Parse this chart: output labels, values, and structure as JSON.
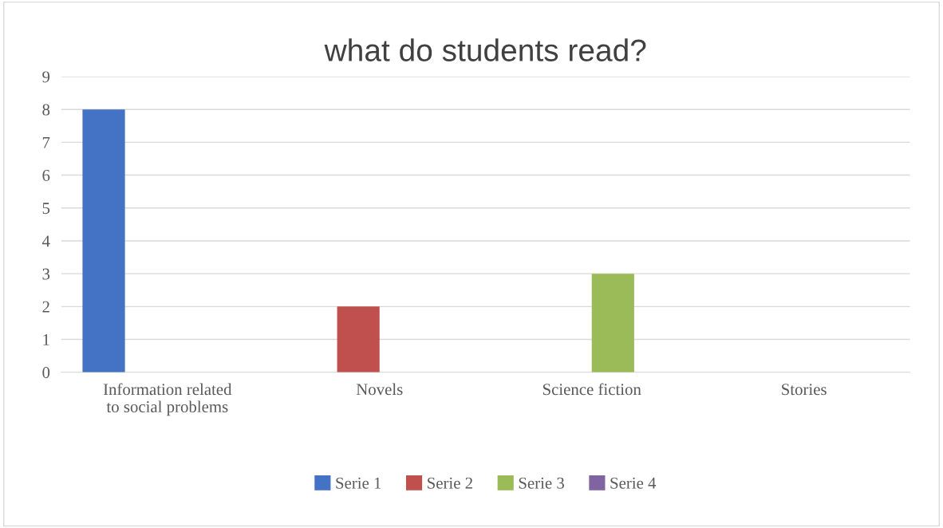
{
  "chart_data": {
    "type": "bar",
    "title": "what do students read?",
    "categories": [
      "Information related\nto social problems",
      "Novels",
      "Science fiction",
      "Stories"
    ],
    "series": [
      {
        "name": "Serie 1",
        "color": "#4472c4",
        "values": [
          8,
          null,
          null,
          null
        ]
      },
      {
        "name": "Serie 2",
        "color": "#c0504d",
        "values": [
          null,
          2,
          null,
          null
        ]
      },
      {
        "name": "Serie 3",
        "color": "#9bbb59",
        "values": [
          null,
          null,
          3,
          null
        ]
      },
      {
        "name": "Serie 4",
        "color": "#8064a2",
        "values": [
          null,
          null,
          null,
          0
        ]
      }
    ],
    "ylim": [
      0,
      9
    ],
    "yticks": [
      0,
      1,
      2,
      3,
      4,
      5,
      6,
      7,
      8,
      9
    ],
    "grid": "y",
    "legend": "bottom"
  }
}
